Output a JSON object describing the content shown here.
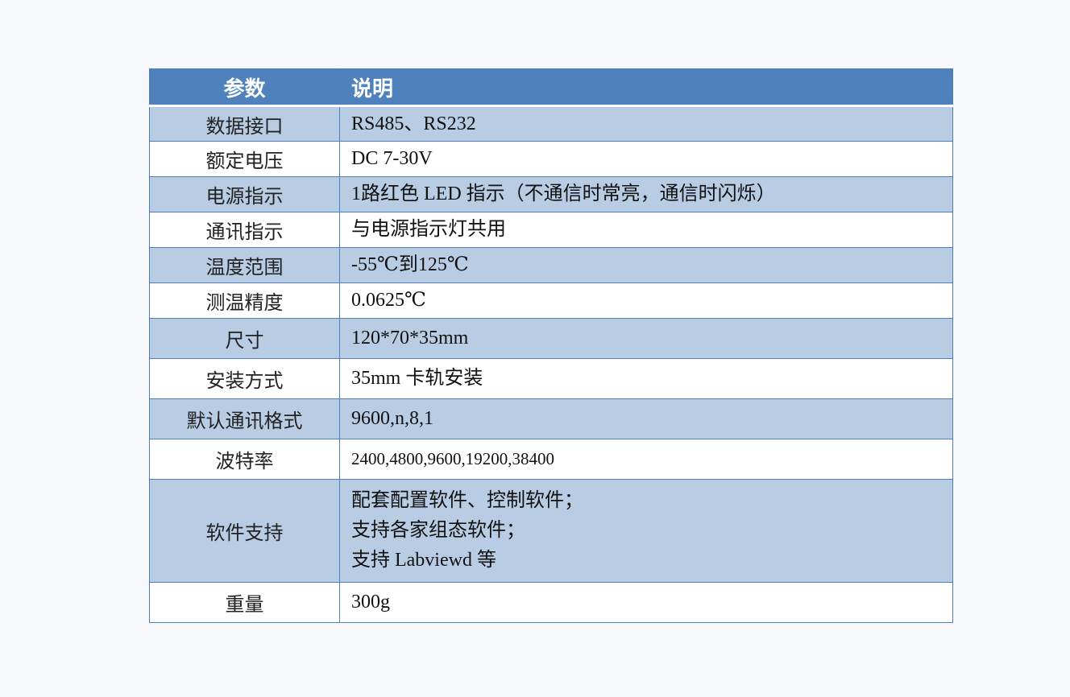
{
  "table": {
    "headers": [
      "参数",
      "说明"
    ],
    "colors": {
      "header": "#4f81bd",
      "band": "#b8cce4",
      "border": "#4f7fbd"
    },
    "rows": [
      {
        "param": "数据接口",
        "desc": [
          "RS485、RS232"
        ]
      },
      {
        "param": "额定电压",
        "desc": [
          "DC 7-30V"
        ]
      },
      {
        "param": "电源指示",
        "desc": [
          "1路红色 LED 指示（不通信时常亮，通信时闪烁）"
        ]
      },
      {
        "param": "通讯指示",
        "desc": [
          "与电源指示灯共用"
        ]
      },
      {
        "param": "温度范围",
        "desc": [
          "-55℃到125℃"
        ]
      },
      {
        "param": "测温精度",
        "desc": [
          "0.0625℃"
        ]
      },
      {
        "param": "尺寸",
        "desc": [
          "120*70*35mm"
        ]
      },
      {
        "param": "安装方式",
        "desc": [
          "35mm 卡轨安装"
        ]
      },
      {
        "param": "默认通讯格式",
        "desc": [
          "9600,n,8,1"
        ]
      },
      {
        "param": "波特率",
        "desc": [
          "2400,4800,9600,19200,38400"
        ]
      },
      {
        "param": "软件支持",
        "desc": [
          "配套配置软件、控制软件；",
          "支持各家组态软件；",
          "支持 Labviewd 等"
        ]
      },
      {
        "param": "重量",
        "desc": [
          "300g"
        ]
      }
    ]
  }
}
